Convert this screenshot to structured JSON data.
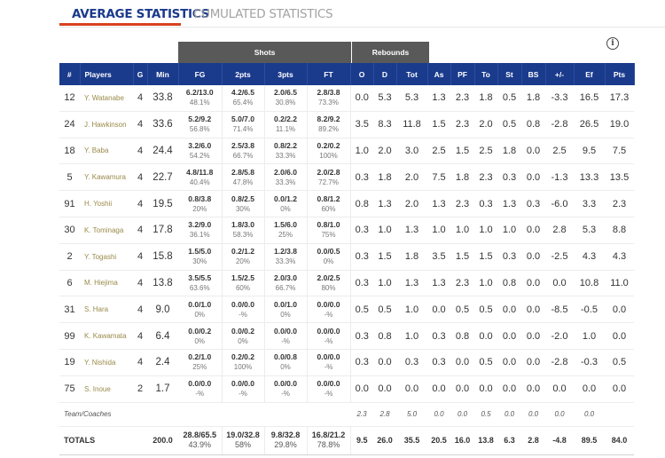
{
  "tabs": {
    "average": "AVERAGE STATISTICS",
    "cumulated": "CUMULATED STATISTICS"
  },
  "info_icon": "i",
  "groups": {
    "shots": "Shots",
    "rebounds": "Rebounds"
  },
  "headers": [
    "#",
    "Players",
    "G",
    "Min",
    "FG",
    "2pts",
    "3pts",
    "FT",
    "O",
    "D",
    "Tot",
    "As",
    "PF",
    "To",
    "St",
    "BS",
    "+/-",
    "Ef",
    "Pts"
  ],
  "players": [
    {
      "num": "12",
      "name": "Y. Watanabe",
      "g": "4",
      "min": "33.8",
      "fg": [
        "6.2/13.0",
        "48.1%"
      ],
      "p2": [
        "4.2/6.5",
        "65.4%"
      ],
      "p3": [
        "2.0/6.5",
        "30.8%"
      ],
      "ft": [
        "2.8/3.8",
        "73.3%"
      ],
      "o": "0.0",
      "d": "5.3",
      "tot": "5.3",
      "as": "1.3",
      "pf": "2.3",
      "to": "1.8",
      "st": "0.5",
      "bs": "1.8",
      "pm": "-3.3",
      "ef": "16.5",
      "pts": "17.3"
    },
    {
      "num": "24",
      "name": "J. Hawkinson",
      "g": "4",
      "min": "33.6",
      "fg": [
        "5.2/9.2",
        "56.8%"
      ],
      "p2": [
        "5.0/7.0",
        "71.4%"
      ],
      "p3": [
        "0.2/2.2",
        "11.1%"
      ],
      "ft": [
        "8.2/9.2",
        "89.2%"
      ],
      "o": "3.5",
      "d": "8.3",
      "tot": "11.8",
      "as": "1.5",
      "pf": "2.3",
      "to": "2.0",
      "st": "0.5",
      "bs": "0.8",
      "pm": "-2.8",
      "ef": "26.5",
      "pts": "19.0"
    },
    {
      "num": "18",
      "name": "Y. Baba",
      "g": "4",
      "min": "24.4",
      "fg": [
        "3.2/6.0",
        "54.2%"
      ],
      "p2": [
        "2.5/3.8",
        "66.7%"
      ],
      "p3": [
        "0.8/2.2",
        "33.3%"
      ],
      "ft": [
        "0.2/0.2",
        "100%"
      ],
      "o": "1.0",
      "d": "2.0",
      "tot": "3.0",
      "as": "2.5",
      "pf": "1.5",
      "to": "2.5",
      "st": "1.8",
      "bs": "0.0",
      "pm": "2.5",
      "ef": "9.5",
      "pts": "7.5"
    },
    {
      "num": "5",
      "name": "Y. Kawamura",
      "g": "4",
      "min": "22.7",
      "fg": [
        "4.8/11.8",
        "40.4%"
      ],
      "p2": [
        "2.8/5.8",
        "47.8%"
      ],
      "p3": [
        "2.0/6.0",
        "33.3%"
      ],
      "ft": [
        "2.0/2.8",
        "72.7%"
      ],
      "o": "0.3",
      "d": "1.8",
      "tot": "2.0",
      "as": "7.5",
      "pf": "1.8",
      "to": "2.3",
      "st": "0.3",
      "bs": "0.0",
      "pm": "-1.3",
      "ef": "13.3",
      "pts": "13.5"
    },
    {
      "num": "91",
      "name": "H. Yoshii",
      "g": "4",
      "min": "19.5",
      "fg": [
        "0.8/3.8",
        "20%"
      ],
      "p2": [
        "0.8/2.5",
        "30%"
      ],
      "p3": [
        "0.0/1.2",
        "0%"
      ],
      "ft": [
        "0.8/1.2",
        "60%"
      ],
      "o": "0.8",
      "d": "1.3",
      "tot": "2.0",
      "as": "1.3",
      "pf": "2.3",
      "to": "0.3",
      "st": "1.3",
      "bs": "0.3",
      "pm": "-6.0",
      "ef": "3.3",
      "pts": "2.3"
    },
    {
      "num": "30",
      "name": "K. Tominaga",
      "g": "4",
      "min": "17.8",
      "fg": [
        "3.2/9.0",
        "36.1%"
      ],
      "p2": [
        "1.8/3.0",
        "58.3%"
      ],
      "p3": [
        "1.5/6.0",
        "25%"
      ],
      "ft": [
        "0.8/1.0",
        "75%"
      ],
      "o": "0.3",
      "d": "1.0",
      "tot": "1.3",
      "as": "1.0",
      "pf": "1.0",
      "to": "1.0",
      "st": "1.0",
      "bs": "0.0",
      "pm": "2.8",
      "ef": "5.3",
      "pts": "8.8"
    },
    {
      "num": "2",
      "name": "Y. Togashi",
      "g": "4",
      "min": "15.8",
      "fg": [
        "1.5/5.0",
        "30%"
      ],
      "p2": [
        "0.2/1.2",
        "20%"
      ],
      "p3": [
        "1.2/3.8",
        "33.3%"
      ],
      "ft": [
        "0.0/0.5",
        "0%"
      ],
      "o": "0.3",
      "d": "1.5",
      "tot": "1.8",
      "as": "3.5",
      "pf": "1.5",
      "to": "1.5",
      "st": "0.3",
      "bs": "0.0",
      "pm": "-2.5",
      "ef": "4.3",
      "pts": "4.3"
    },
    {
      "num": "6",
      "name": "M. Hiejima",
      "g": "4",
      "min": "13.8",
      "fg": [
        "3.5/5.5",
        "63.6%"
      ],
      "p2": [
        "1.5/2.5",
        "60%"
      ],
      "p3": [
        "2.0/3.0",
        "66.7%"
      ],
      "ft": [
        "2.0/2.5",
        "80%"
      ],
      "o": "0.3",
      "d": "1.0",
      "tot": "1.3",
      "as": "1.3",
      "pf": "2.3",
      "to": "1.0",
      "st": "0.8",
      "bs": "0.0",
      "pm": "0.0",
      "ef": "10.8",
      "pts": "11.0"
    },
    {
      "num": "31",
      "name": "S. Hara",
      "g": "4",
      "min": "9.0",
      "fg": [
        "0.0/1.0",
        "0%"
      ],
      "p2": [
        "0.0/0.0",
        "-%"
      ],
      "p3": [
        "0.0/1.0",
        "0%"
      ],
      "ft": [
        "0.0/0.0",
        "-%"
      ],
      "o": "0.5",
      "d": "0.5",
      "tot": "1.0",
      "as": "0.0",
      "pf": "0.5",
      "to": "0.5",
      "st": "0.0",
      "bs": "0.0",
      "pm": "-8.5",
      "ef": "-0.5",
      "pts": "0.0"
    },
    {
      "num": "99",
      "name": "K. Kawamata",
      "g": "4",
      "min": "6.4",
      "fg": [
        "0.0/0.2",
        "0%"
      ],
      "p2": [
        "0.0/0.2",
        "0%"
      ],
      "p3": [
        "0.0/0.0",
        "-%"
      ],
      "ft": [
        "0.0/0.0",
        "-%"
      ],
      "o": "0.3",
      "d": "0.8",
      "tot": "1.0",
      "as": "0.3",
      "pf": "0.8",
      "to": "0.0",
      "st": "0.0",
      "bs": "0.0",
      "pm": "-2.0",
      "ef": "1.0",
      "pts": "0.0"
    },
    {
      "num": "19",
      "name": "Y. Nishida",
      "g": "4",
      "min": "2.4",
      "fg": [
        "0.2/1.0",
        "25%"
      ],
      "p2": [
        "0.2/0.2",
        "100%"
      ],
      "p3": [
        "0.0/0.8",
        "0%"
      ],
      "ft": [
        "0.0/0.0",
        "-%"
      ],
      "o": "0.3",
      "d": "0.0",
      "tot": "0.3",
      "as": "0.3",
      "pf": "0.0",
      "to": "0.5",
      "st": "0.0",
      "bs": "0.0",
      "pm": "-2.8",
      "ef": "-0.3",
      "pts": "0.5"
    },
    {
      "num": "75",
      "name": "S. Inoue",
      "g": "2",
      "min": "1.7",
      "fg": [
        "0.0/0.0",
        "-%"
      ],
      "p2": [
        "0.0/0.0",
        "-%"
      ],
      "p3": [
        "0.0/0.0",
        "-%"
      ],
      "ft": [
        "0.0/0.0",
        "-%"
      ],
      "o": "0.0",
      "d": "0.0",
      "tot": "0.0",
      "as": "0.0",
      "pf": "0.0",
      "to": "0.0",
      "st": "0.0",
      "bs": "0.0",
      "pm": "0.0",
      "ef": "0.0",
      "pts": "0.0"
    }
  ],
  "team_coaches": {
    "label": "Team/Coaches",
    "o": "2.3",
    "d": "2.8",
    "tot": "5.0",
    "as": "0.0",
    "pf": "0.0",
    "to": "0.5",
    "st": "0.0",
    "bs": "0.0",
    "pm": "0.0",
    "ef": "0.0"
  },
  "totals": {
    "label": "TOTALS",
    "min": "200.0",
    "fg": [
      "28.8/65.5",
      "43.9%"
    ],
    "p2": [
      "19.0/32.8",
      "58%"
    ],
    "p3": [
      "9.8/32.8",
      "29.8%"
    ],
    "ft": [
      "16.8/21.2",
      "78.8%"
    ],
    "o": "9.5",
    "d": "26.0",
    "tot": "35.5",
    "as": "20.5",
    "pf": "16.0",
    "to": "13.8",
    "st": "6.3",
    "bs": "2.8",
    "pm": "-4.8",
    "ef": "89.5",
    "pts": "84.0"
  }
}
